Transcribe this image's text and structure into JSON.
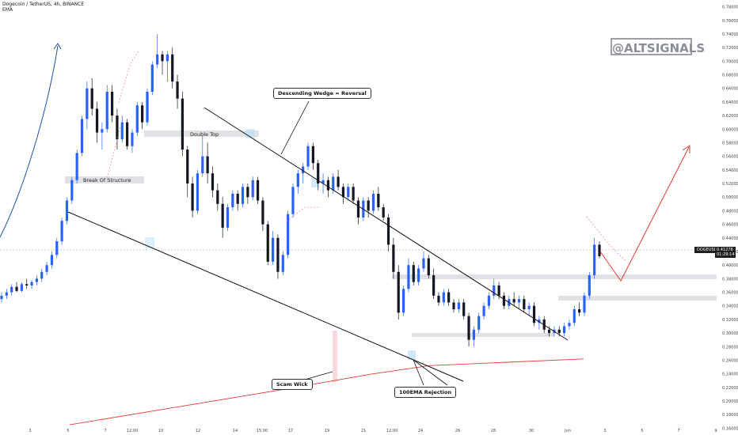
{
  "header": {
    "symbol_line": "Dogecoin / TetherUS, 4h, BINANCE",
    "indicator": "EMA"
  },
  "watermark": "@ALTSIGNALS",
  "annotations": {
    "break_of_structure": "Break Of Structure",
    "double_top": "Double Top",
    "descending_wedge": "Descending Wedge = Reversal",
    "scam_wick": "Scam Wick",
    "ema_rejection": "100EMA Rejection"
  },
  "price_tag": {
    "symbol": "DOGEUSDT",
    "price": "0.41278",
    "countdown": "01:29:14"
  },
  "colors": {
    "bull": "#2962ff",
    "bear": "#131722",
    "ema": "#e53935",
    "projection": "#e53935",
    "curve": "#1e4fa8",
    "zone": "#d7d9dd"
  },
  "chart_data": {
    "type": "candlestick",
    "title": "Dogecoin / TetherUS, 4h, BINANCE",
    "x_ticks": [
      "3",
      "5",
      "7",
      "12:00",
      "10",
      "12",
      "14",
      "15:00",
      "17",
      "19",
      "21",
      "12:00",
      "24",
      "26",
      "28",
      "30",
      "Jun",
      "3",
      "5",
      "7",
      "9"
    ],
    "y_ticks": [
      "0.78000",
      "0.76000",
      "0.74000",
      "0.72000",
      "0.70000",
      "0.68000",
      "0.66000",
      "0.64000",
      "0.62000",
      "0.60000",
      "0.58000",
      "0.56000",
      "0.54000",
      "0.52000",
      "0.50000",
      "0.48000",
      "0.46000",
      "0.44000",
      "0.42000",
      "0.40000",
      "0.38000",
      "0.36000",
      "0.34000",
      "0.32000",
      "0.30000",
      "0.28000",
      "0.26000",
      "0.24000",
      "0.22000",
      "0.20000",
      "0.18000",
      "0.16000"
    ],
    "ylim": [
      0.15,
      0.79
    ],
    "last_price": 0.41278,
    "candles_ohlc": [
      [
        0.35,
        0.36,
        0.345,
        0.355
      ],
      [
        0.355,
        0.365,
        0.35,
        0.36
      ],
      [
        0.36,
        0.372,
        0.355,
        0.368
      ],
      [
        0.368,
        0.375,
        0.36,
        0.362
      ],
      [
        0.362,
        0.375,
        0.36,
        0.372
      ],
      [
        0.372,
        0.38,
        0.365,
        0.37
      ],
      [
        0.37,
        0.378,
        0.365,
        0.375
      ],
      [
        0.375,
        0.385,
        0.37,
        0.38
      ],
      [
        0.38,
        0.395,
        0.375,
        0.39
      ],
      [
        0.39,
        0.405,
        0.385,
        0.4
      ],
      [
        0.4,
        0.42,
        0.395,
        0.415
      ],
      [
        0.415,
        0.44,
        0.41,
        0.435
      ],
      [
        0.435,
        0.47,
        0.43,
        0.465
      ],
      [
        0.465,
        0.5,
        0.46,
        0.495
      ],
      [
        0.495,
        0.53,
        0.49,
        0.525
      ],
      [
        0.525,
        0.57,
        0.52,
        0.565
      ],
      [
        0.565,
        0.62,
        0.56,
        0.615
      ],
      [
        0.615,
        0.67,
        0.6,
        0.66
      ],
      [
        0.66,
        0.675,
        0.62,
        0.63
      ],
      [
        0.63,
        0.64,
        0.58,
        0.595
      ],
      [
        0.595,
        0.61,
        0.57,
        0.6
      ],
      [
        0.6,
        0.665,
        0.595,
        0.655
      ],
      [
        0.655,
        0.665,
        0.61,
        0.62
      ],
      [
        0.62,
        0.63,
        0.57,
        0.585
      ],
      [
        0.585,
        0.62,
        0.58,
        0.61
      ],
      [
        0.61,
        0.615,
        0.57,
        0.575
      ],
      [
        0.575,
        0.6,
        0.565,
        0.595
      ],
      [
        0.595,
        0.64,
        0.59,
        0.635
      ],
      [
        0.635,
        0.64,
        0.6,
        0.61
      ],
      [
        0.61,
        0.66,
        0.605,
        0.655
      ],
      [
        0.655,
        0.7,
        0.65,
        0.695
      ],
      [
        0.695,
        0.74,
        0.69,
        0.71
      ],
      [
        0.71,
        0.715,
        0.68,
        0.7
      ],
      [
        0.7,
        0.715,
        0.67,
        0.71
      ],
      [
        0.71,
        0.72,
        0.66,
        0.67
      ],
      [
        0.67,
        0.68,
        0.63,
        0.645
      ],
      [
        0.645,
        0.655,
        0.56,
        0.57
      ],
      [
        0.57,
        0.575,
        0.5,
        0.52
      ],
      [
        0.52,
        0.53,
        0.47,
        0.48
      ],
      [
        0.48,
        0.54,
        0.475,
        0.535
      ],
      [
        0.535,
        0.59,
        0.53,
        0.56
      ],
      [
        0.56,
        0.58,
        0.52,
        0.535
      ],
      [
        0.535,
        0.545,
        0.5,
        0.51
      ],
      [
        0.51,
        0.52,
        0.48,
        0.49
      ],
      [
        0.49,
        0.5,
        0.44,
        0.455
      ],
      [
        0.455,
        0.49,
        0.45,
        0.485
      ],
      [
        0.485,
        0.51,
        0.48,
        0.505
      ],
      [
        0.505,
        0.51,
        0.48,
        0.49
      ],
      [
        0.49,
        0.52,
        0.485,
        0.515
      ],
      [
        0.515,
        0.52,
        0.49,
        0.5
      ],
      [
        0.5,
        0.53,
        0.495,
        0.525
      ],
      [
        0.525,
        0.53,
        0.49,
        0.495
      ],
      [
        0.495,
        0.5,
        0.45,
        0.46
      ],
      [
        0.46,
        0.465,
        0.4,
        0.405
      ],
      [
        0.405,
        0.45,
        0.4,
        0.44
      ],
      [
        0.44,
        0.445,
        0.38,
        0.39
      ],
      [
        0.39,
        0.42,
        0.385,
        0.415
      ],
      [
        0.415,
        0.48,
        0.41,
        0.475
      ],
      [
        0.475,
        0.52,
        0.47,
        0.515
      ],
      [
        0.515,
        0.54,
        0.505,
        0.535
      ],
      [
        0.535,
        0.55,
        0.52,
        0.545
      ],
      [
        0.545,
        0.58,
        0.54,
        0.575
      ],
      [
        0.575,
        0.58,
        0.54,
        0.55
      ],
      [
        0.55,
        0.555,
        0.51,
        0.52
      ],
      [
        0.52,
        0.535,
        0.505,
        0.525
      ],
      [
        0.525,
        0.53,
        0.5,
        0.51
      ],
      [
        0.51,
        0.535,
        0.505,
        0.53
      ],
      [
        0.53,
        0.54,
        0.51,
        0.515
      ],
      [
        0.515,
        0.52,
        0.49,
        0.5
      ],
      [
        0.5,
        0.52,
        0.495,
        0.515
      ],
      [
        0.515,
        0.52,
        0.49,
        0.495
      ],
      [
        0.495,
        0.5,
        0.46,
        0.47
      ],
      [
        0.47,
        0.5,
        0.465,
        0.495
      ],
      [
        0.495,
        0.5,
        0.47,
        0.48
      ],
      [
        0.48,
        0.51,
        0.475,
        0.505
      ],
      [
        0.505,
        0.515,
        0.48,
        0.485
      ],
      [
        0.485,
        0.49,
        0.465,
        0.47
      ],
      [
        0.47,
        0.475,
        0.42,
        0.43
      ],
      [
        0.43,
        0.44,
        0.38,
        0.39
      ],
      [
        0.39,
        0.4,
        0.32,
        0.33
      ],
      [
        0.33,
        0.37,
        0.325,
        0.365
      ],
      [
        0.365,
        0.41,
        0.36,
        0.4
      ],
      [
        0.4,
        0.405,
        0.37,
        0.375
      ],
      [
        0.375,
        0.4,
        0.37,
        0.395
      ],
      [
        0.395,
        0.42,
        0.39,
        0.41
      ],
      [
        0.41,
        0.415,
        0.38,
        0.385
      ],
      [
        0.385,
        0.395,
        0.35,
        0.355
      ],
      [
        0.355,
        0.36,
        0.34,
        0.345
      ],
      [
        0.345,
        0.365,
        0.34,
        0.36
      ],
      [
        0.36,
        0.365,
        0.34,
        0.345
      ],
      [
        0.345,
        0.35,
        0.33,
        0.335
      ],
      [
        0.335,
        0.35,
        0.33,
        0.345
      ],
      [
        0.345,
        0.35,
        0.32,
        0.325
      ],
      [
        0.325,
        0.33,
        0.28,
        0.29
      ],
      [
        0.29,
        0.31,
        0.28,
        0.305
      ],
      [
        0.305,
        0.33,
        0.3,
        0.325
      ],
      [
        0.325,
        0.345,
        0.32,
        0.34
      ],
      [
        0.34,
        0.36,
        0.335,
        0.355
      ],
      [
        0.355,
        0.38,
        0.35,
        0.37
      ],
      [
        0.37,
        0.375,
        0.35,
        0.355
      ],
      [
        0.355,
        0.36,
        0.335,
        0.34
      ],
      [
        0.34,
        0.355,
        0.335,
        0.35
      ],
      [
        0.35,
        0.36,
        0.34,
        0.345
      ],
      [
        0.345,
        0.355,
        0.335,
        0.35
      ],
      [
        0.35,
        0.355,
        0.33,
        0.335
      ],
      [
        0.335,
        0.345,
        0.325,
        0.34
      ],
      [
        0.34,
        0.345,
        0.31,
        0.315
      ],
      [
        0.315,
        0.325,
        0.305,
        0.32
      ],
      [
        0.32,
        0.325,
        0.3,
        0.305
      ],
      [
        0.305,
        0.31,
        0.295,
        0.3
      ],
      [
        0.3,
        0.31,
        0.295,
        0.305
      ],
      [
        0.305,
        0.31,
        0.295,
        0.3
      ],
      [
        0.3,
        0.315,
        0.295,
        0.31
      ],
      [
        0.31,
        0.32,
        0.305,
        0.315
      ],
      [
        0.315,
        0.34,
        0.31,
        0.335
      ],
      [
        0.335,
        0.345,
        0.325,
        0.33
      ],
      [
        0.33,
        0.36,
        0.325,
        0.355
      ],
      [
        0.355,
        0.39,
        0.35,
        0.385
      ],
      [
        0.385,
        0.44,
        0.38,
        0.43
      ],
      [
        0.43,
        0.435,
        0.41,
        0.413
      ]
    ],
    "ema_100": [
      [
        0,
        0.165
      ],
      [
        40,
        0.19
      ],
      [
        80,
        0.215
      ],
      [
        118,
        0.24
      ],
      [
        140,
        0.252
      ],
      [
        200,
        0.262
      ]
    ]
  }
}
